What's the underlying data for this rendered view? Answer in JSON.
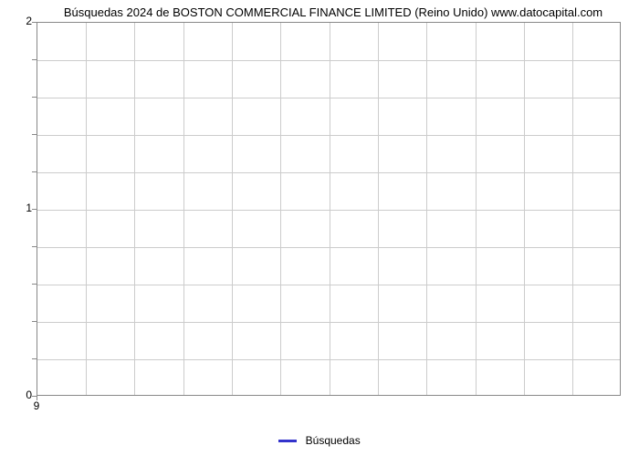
{
  "chart": {
    "type": "line",
    "title": "Búsquedas 2024 de BOSTON COMMERCIAL FINANCE LIMITED (Reino Unido) www.datocapital.com",
    "title_fontsize": 13,
    "title_color": "#000000",
    "background_color": "#ffffff",
    "plot_border_color": "#888888",
    "grid_color": "#cccccc",
    "y_axis": {
      "min": 0,
      "max": 2,
      "major_ticks": [
        0,
        1,
        2
      ],
      "minor_ticks_per_interval": 5
    },
    "x_axis": {
      "min": 9,
      "max": 9,
      "ticks": [
        9
      ],
      "vertical_gridlines": 11
    },
    "series": [
      {
        "name": "Búsquedas",
        "color": "#3333cc",
        "line_width": 3,
        "data": []
      }
    ],
    "legend": {
      "position": "bottom",
      "label": "Búsquedas",
      "swatch_color": "#3333cc"
    }
  }
}
